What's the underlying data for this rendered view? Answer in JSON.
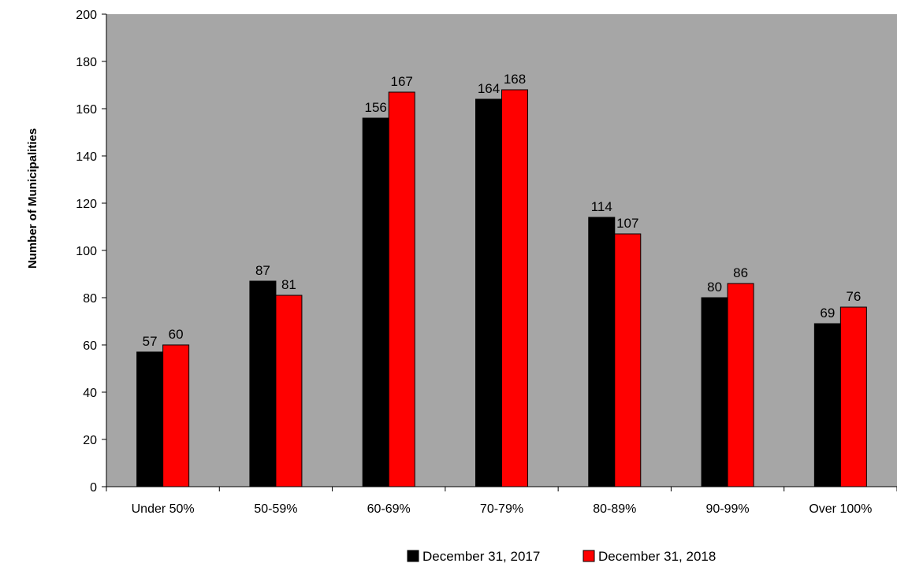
{
  "chart_data": {
    "type": "bar",
    "categories": [
      "Under 50%",
      "50-59%",
      "60-69%",
      "70-79%",
      "80-89%",
      "90-99%",
      "Over 100%"
    ],
    "series": [
      {
        "name": "December 31, 2017",
        "values": [
          57,
          87,
          156,
          164,
          114,
          80,
          69
        ],
        "color": "#000000"
      },
      {
        "name": "December 31, 2018",
        "values": [
          60,
          81,
          167,
          168,
          107,
          86,
          76
        ],
        "color": "#ff0000"
      }
    ],
    "ylabel": "Number of Municipalities",
    "xlabel": "",
    "ylim": [
      0,
      200
    ],
    "yticks": [
      0,
      20,
      40,
      60,
      80,
      100,
      120,
      140,
      160,
      180,
      200
    ],
    "grid": false,
    "plot_background": "#a6a6a6",
    "legend_position": "bottom"
  }
}
